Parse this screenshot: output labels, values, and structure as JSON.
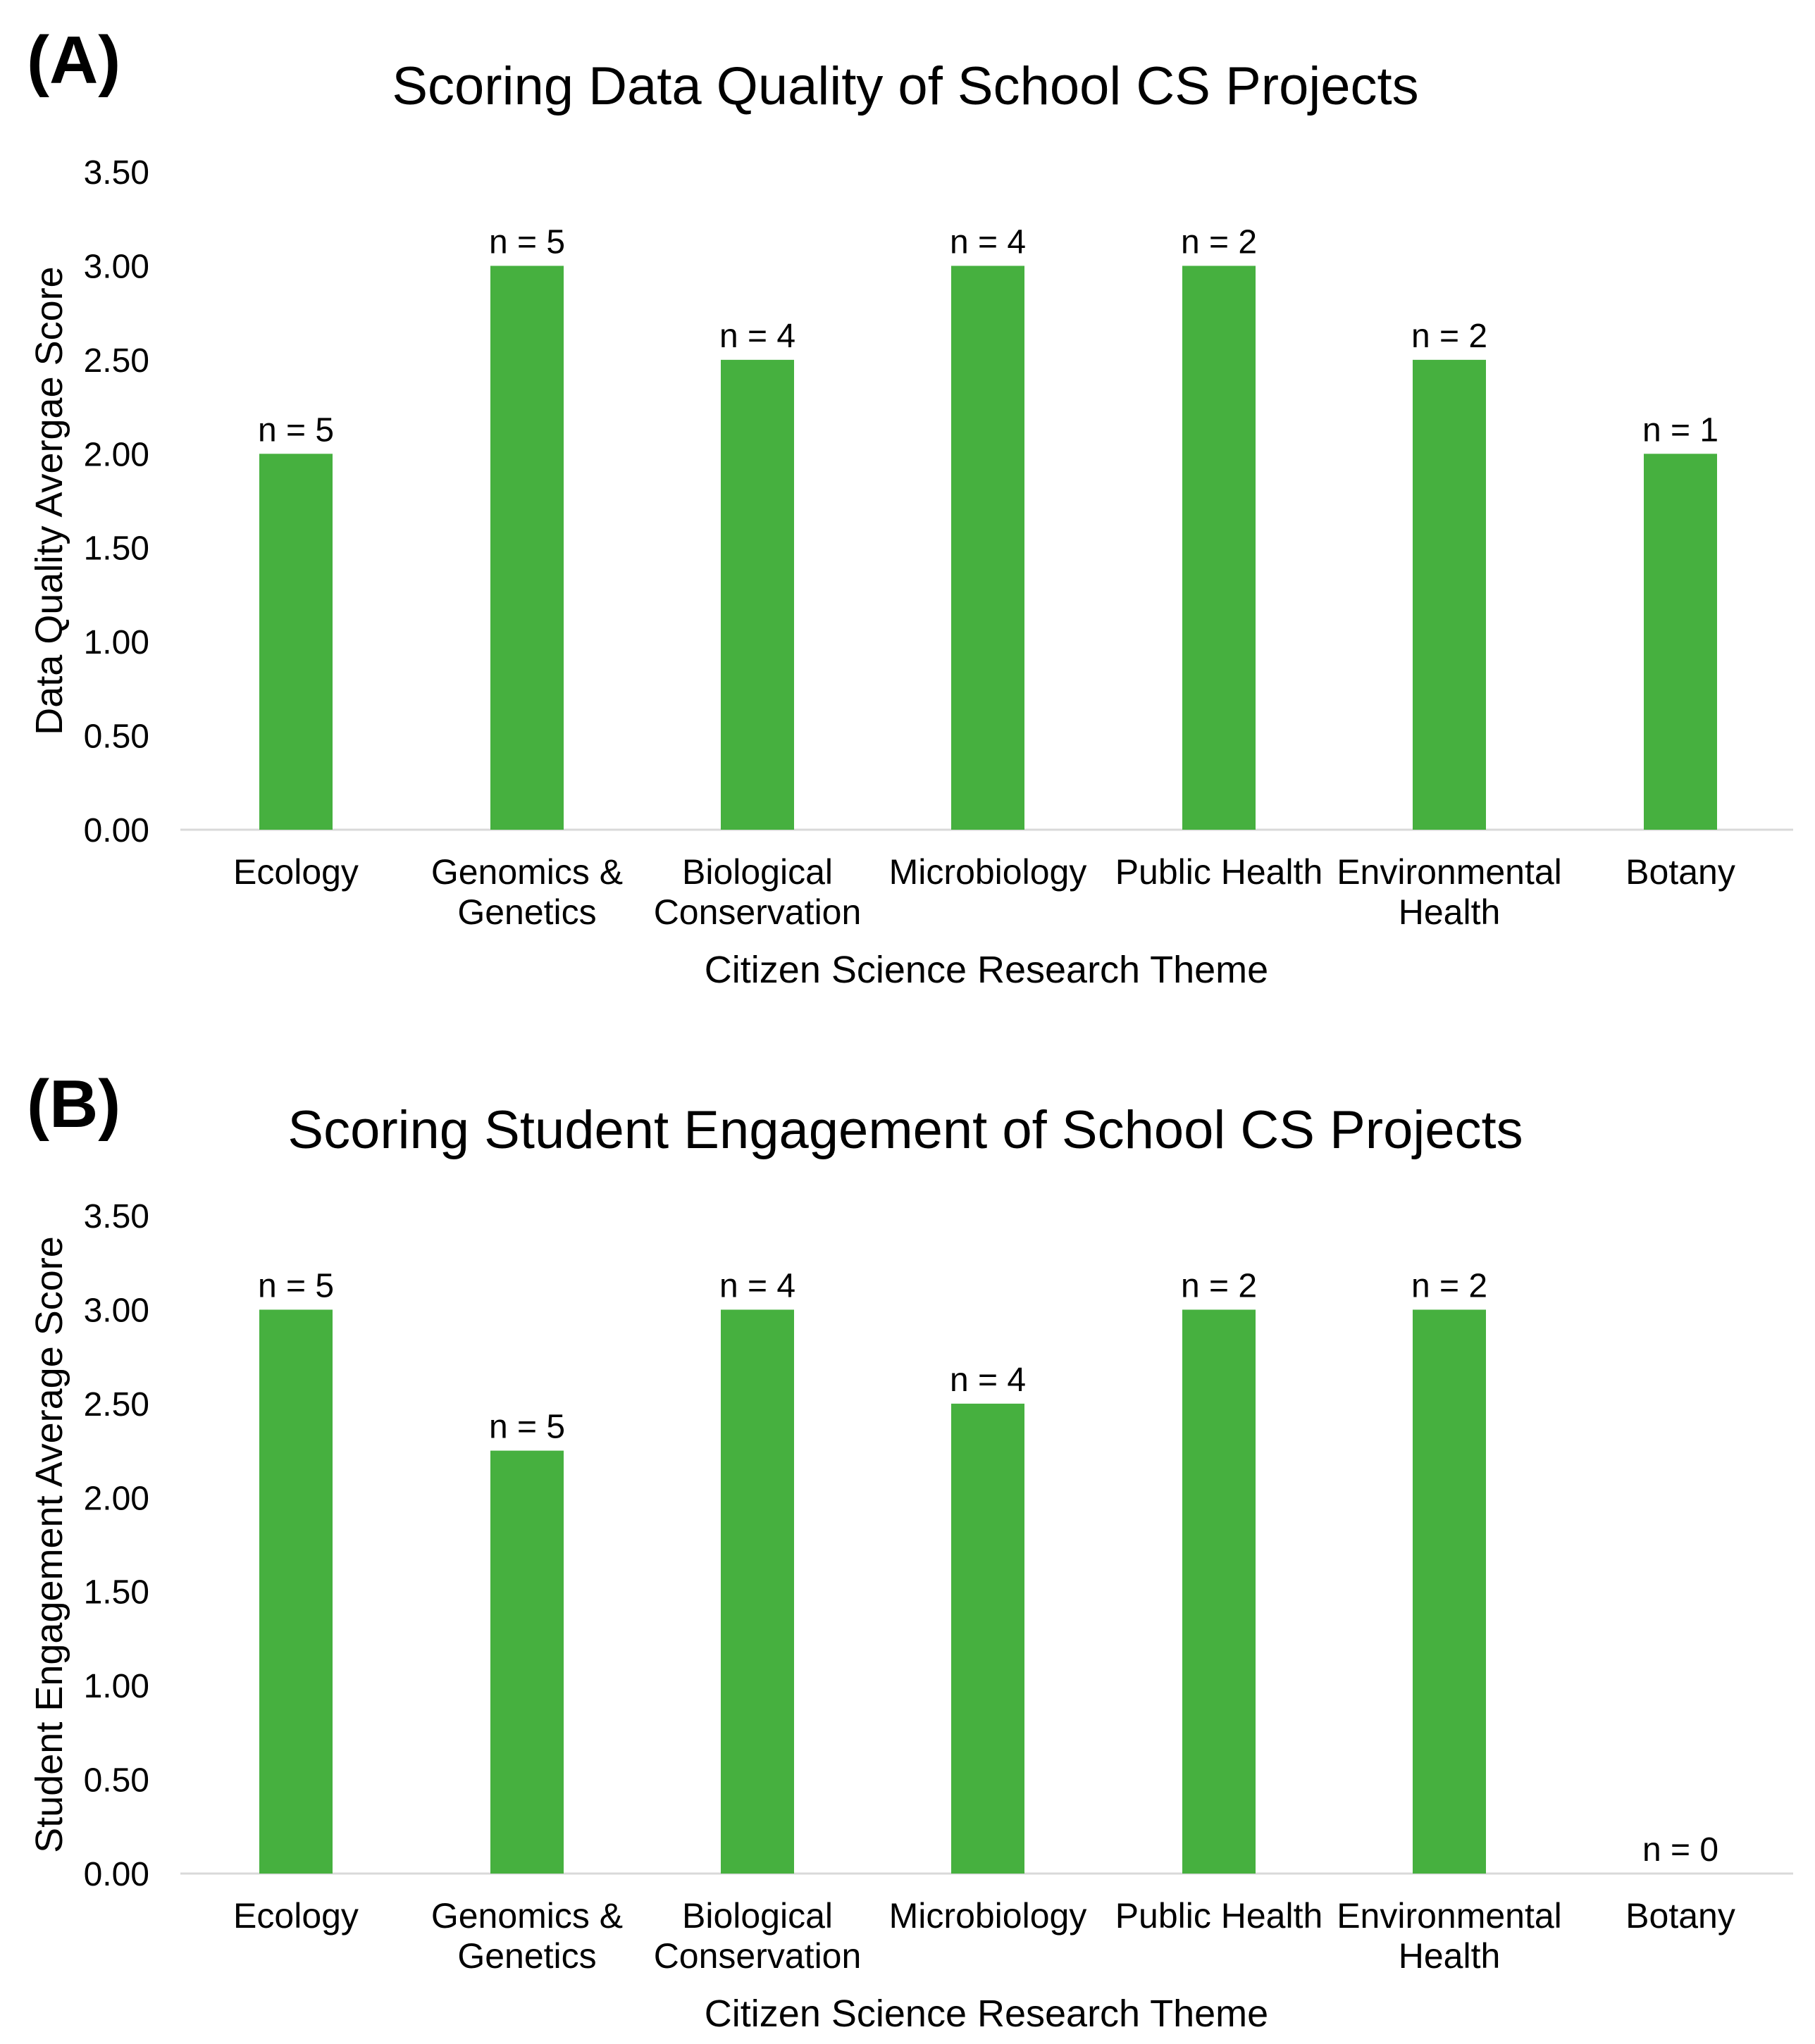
{
  "chart_data": [
    {
      "panel": "(A)",
      "type": "bar",
      "title": "Scoring Data Quality of School CS Projects",
      "xlabel": "Citizen Science Research Theme",
      "ylabel": "Data Quality Avergae Score",
      "categories": [
        [
          "Ecology"
        ],
        [
          "Genomics &",
          "Genetics"
        ],
        [
          "Biological",
          "Conservation"
        ],
        [
          "Microbiology"
        ],
        [
          "Public Health"
        ],
        [
          "Environmental",
          "Health"
        ],
        [
          "Botany"
        ]
      ],
      "values": [
        2.0,
        3.0,
        2.5,
        3.0,
        3.0,
        2.5,
        2.0
      ],
      "data_labels": [
        "n = 5",
        "n = 5",
        "n = 4",
        "n = 4",
        "n = 2",
        "n = 2",
        "n = 1"
      ],
      "yticks": [
        "0.00",
        "0.50",
        "1.00",
        "1.50",
        "2.00",
        "2.50",
        "3.00",
        "3.50"
      ],
      "ylim": [
        0,
        3.5
      ],
      "grid": false,
      "bar_color": "#46b03f"
    },
    {
      "panel": "(B)",
      "type": "bar",
      "title": "Scoring Student Engagement of School CS Projects",
      "xlabel": "Citizen Science Research Theme",
      "ylabel": "Student Engagement Average Score",
      "categories": [
        [
          "Ecology"
        ],
        [
          "Genomics &",
          "Genetics"
        ],
        [
          "Biological",
          "Conservation"
        ],
        [
          "Microbiology"
        ],
        [
          "Public Health"
        ],
        [
          "Environmental",
          "Health"
        ],
        [
          "Botany"
        ]
      ],
      "values": [
        3.0,
        2.25,
        3.0,
        2.5,
        3.0,
        3.0,
        0
      ],
      "data_labels": [
        "n = 5",
        "n = 5",
        "n = 4",
        "n = 4",
        "n = 2",
        "n = 2",
        "n = 0"
      ],
      "yticks": [
        "0.00",
        "0.50",
        "1.00",
        "1.50",
        "2.00",
        "2.50",
        "3.00",
        "3.50"
      ],
      "ylim": [
        0,
        3.5
      ],
      "grid": false,
      "bar_color": "#46b03f"
    }
  ]
}
